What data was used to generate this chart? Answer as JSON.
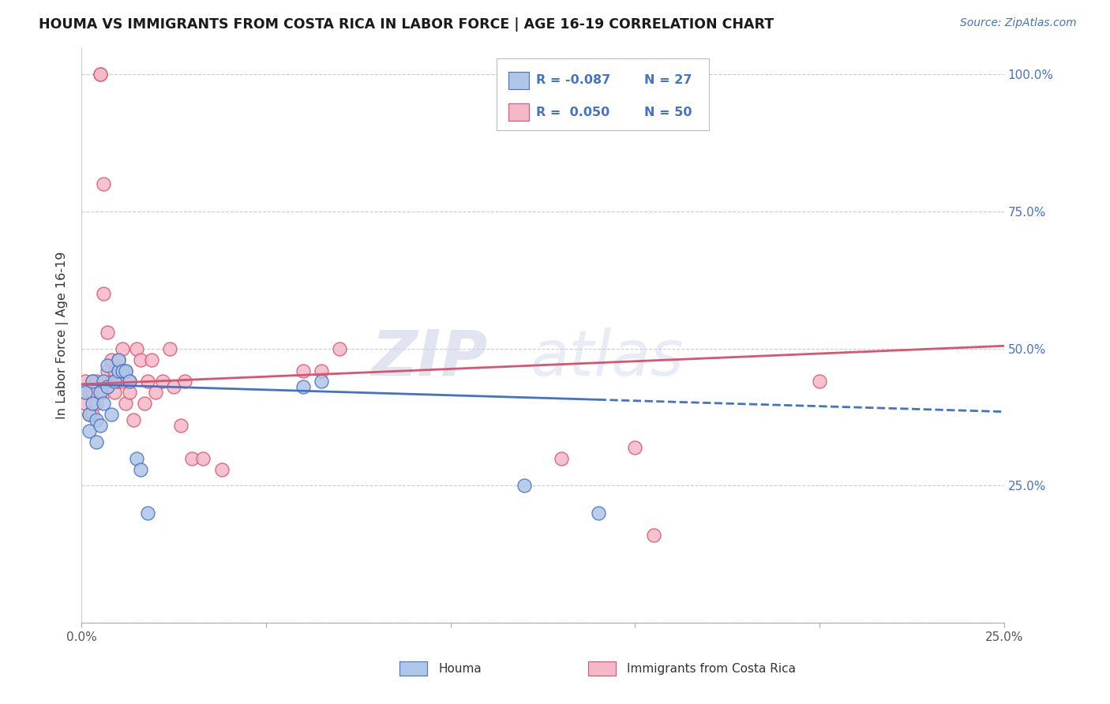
{
  "title": "HOUMA VS IMMIGRANTS FROM COSTA RICA IN LABOR FORCE | AGE 16-19 CORRELATION CHART",
  "source": "Source: ZipAtlas.com",
  "ylabel": "In Labor Force | Age 16-19",
  "xlim": [
    0.0,
    0.25
  ],
  "ylim": [
    0.0,
    1.05
  ],
  "ytick_positions": [
    0.0,
    0.25,
    0.5,
    0.75,
    1.0
  ],
  "ytick_labels": [
    "",
    "25.0%",
    "50.0%",
    "75.0%",
    "100.0%"
  ],
  "houma_color": "#aec6e8",
  "immigrants_color": "#f5b8c8",
  "houma_line_color": "#4472c4",
  "immigrants_line_color": "#d9546e",
  "houma_x": [
    0.001,
    0.002,
    0.002,
    0.003,
    0.003,
    0.004,
    0.004,
    0.005,
    0.005,
    0.006,
    0.006,
    0.007,
    0.007,
    0.008,
    0.009,
    0.01,
    0.01,
    0.011,
    0.012,
    0.013,
    0.015,
    0.016,
    0.018,
    0.06,
    0.065,
    0.12,
    0.14
  ],
  "houma_y": [
    0.42,
    0.38,
    0.35,
    0.4,
    0.44,
    0.37,
    0.33,
    0.42,
    0.36,
    0.44,
    0.4,
    0.47,
    0.43,
    0.38,
    0.44,
    0.46,
    0.48,
    0.46,
    0.46,
    0.44,
    0.3,
    0.28,
    0.2,
    0.43,
    0.44,
    0.25,
    0.2
  ],
  "immigrants_x": [
    0.001,
    0.001,
    0.002,
    0.002,
    0.003,
    0.003,
    0.003,
    0.004,
    0.004,
    0.005,
    0.005,
    0.006,
    0.006,
    0.006,
    0.007,
    0.007,
    0.008,
    0.008,
    0.009,
    0.009,
    0.01,
    0.01,
    0.011,
    0.011,
    0.012,
    0.012,
    0.013,
    0.013,
    0.014,
    0.015,
    0.016,
    0.017,
    0.018,
    0.019,
    0.02,
    0.022,
    0.024,
    0.025,
    0.027,
    0.028,
    0.03,
    0.033,
    0.038,
    0.06,
    0.065,
    0.07,
    0.13,
    0.15,
    0.155,
    0.2
  ],
  "immigrants_y": [
    0.44,
    0.4,
    0.42,
    0.38,
    0.44,
    0.42,
    0.38,
    0.44,
    0.4,
    1.0,
    1.0,
    0.8,
    0.6,
    0.42,
    0.53,
    0.46,
    0.48,
    0.44,
    0.46,
    0.42,
    0.48,
    0.44,
    0.5,
    0.44,
    0.46,
    0.4,
    0.44,
    0.42,
    0.37,
    0.5,
    0.48,
    0.4,
    0.44,
    0.48,
    0.42,
    0.44,
    0.5,
    0.43,
    0.36,
    0.44,
    0.3,
    0.3,
    0.28,
    0.46,
    0.46,
    0.5,
    0.3,
    0.32,
    0.16,
    0.44
  ],
  "houma_line_x0": 0.0,
  "houma_line_x1": 0.25,
  "houma_line_y0": 0.435,
  "houma_line_y1": 0.385,
  "immigrants_line_x0": 0.0,
  "immigrants_line_x1": 0.25,
  "immigrants_line_y0": 0.435,
  "immigrants_line_y1": 0.505
}
